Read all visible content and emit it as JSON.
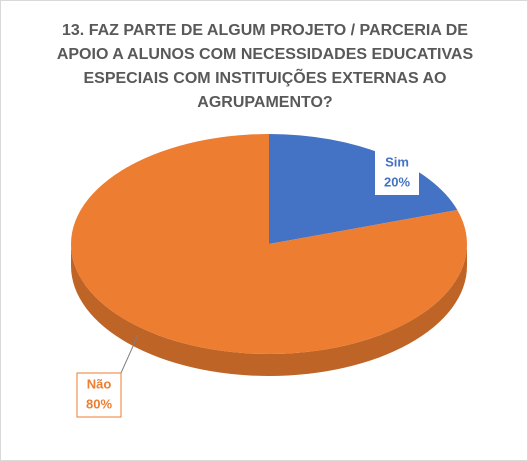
{
  "chart_data": {
    "type": "pie",
    "title": "13. FAZ PARTE DE ALGUM PROJETO / PARCERIA DE APOIO A ALUNOS COM NECESSIDADES EDUCATIVAS ESPECIAIS COM INSTITUIÇÕES EXTERNAS AO AGRUPAMENTO?",
    "categories": [
      "Sim",
      "Não"
    ],
    "values": [
      20,
      80
    ],
    "value_labels": [
      "20%",
      "80%"
    ],
    "colors": [
      "#4472c4",
      "#ed7d31"
    ]
  }
}
